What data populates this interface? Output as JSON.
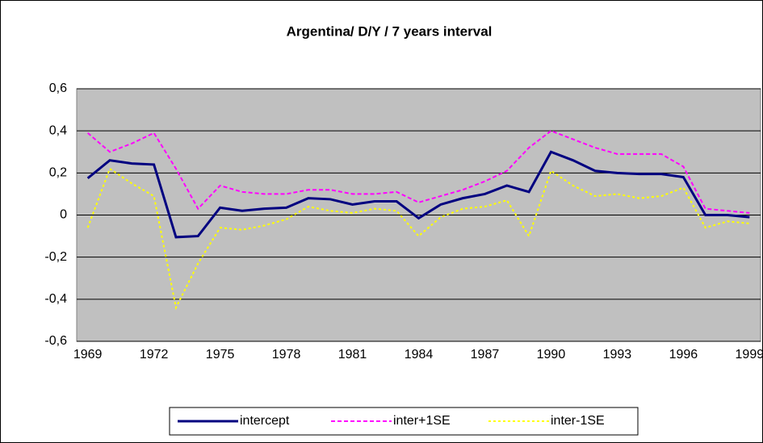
{
  "chart_data": {
    "type": "line",
    "title": "Argentina/ D/Y / 7 years interval",
    "categories": [
      "1969",
      null,
      null,
      "1972",
      null,
      null,
      "1975",
      null,
      null,
      "1978",
      null,
      null,
      "1981",
      null,
      null,
      "1984",
      null,
      null,
      "1987",
      null,
      null,
      "1990",
      null,
      null,
      "1993",
      null,
      null,
      "1996",
      null,
      null,
      "1999"
    ],
    "series": [
      {
        "name": "intercept",
        "color": "#000080",
        "line_style": "solid",
        "values": [
          0.175,
          0.26,
          0.245,
          0.24,
          -0.105,
          -0.1,
          0.035,
          0.02,
          0.03,
          0.035,
          0.08,
          0.075,
          0.05,
          0.065,
          0.065,
          -0.015,
          0.05,
          0.08,
          0.1,
          0.14,
          0.11,
          0.3,
          0.26,
          0.21,
          0.2,
          0.195,
          0.195,
          0.18,
          0.0,
          0.0,
          -0.01
        ]
      },
      {
        "name": "inter+1SE",
        "color": "#ff00ff",
        "line_style": "dashed",
        "values": [
          0.39,
          0.3,
          0.34,
          0.39,
          0.22,
          0.03,
          0.14,
          0.11,
          0.1,
          0.1,
          0.12,
          0.12,
          0.1,
          0.1,
          0.11,
          0.06,
          0.09,
          0.12,
          0.16,
          0.21,
          0.32,
          0.4,
          0.36,
          0.32,
          0.29,
          0.29,
          0.29,
          0.23,
          0.03,
          0.02,
          0.01
        ]
      },
      {
        "name": "inter-1SE",
        "color": "#ffff00",
        "line_style": "dotted",
        "values": [
          -0.06,
          0.22,
          0.15,
          0.09,
          -0.44,
          -0.23,
          -0.06,
          -0.07,
          -0.05,
          -0.02,
          0.04,
          0.02,
          0.01,
          0.03,
          0.02,
          -0.1,
          -0.01,
          0.03,
          0.04,
          0.07,
          -0.1,
          0.21,
          0.14,
          0.09,
          0.1,
          0.08,
          0.09,
          0.13,
          -0.06,
          -0.03,
          -0.04
        ]
      }
    ],
    "ylim": [
      -0.6,
      0.6
    ],
    "yticks": [
      {
        "value": -0.6,
        "label": "-0,6"
      },
      {
        "value": -0.4,
        "label": "-0,4"
      },
      {
        "value": -0.2,
        "label": "-0,2"
      },
      0,
      {
        "value": 0.2,
        "label": "0,2"
      },
      {
        "value": 0.4,
        "label": "0,4"
      },
      {
        "value": 0.6,
        "label": "0,6"
      }
    ],
    "grid": true,
    "plot_background": "#c0c0c0",
    "legend_position": "bottom"
  }
}
